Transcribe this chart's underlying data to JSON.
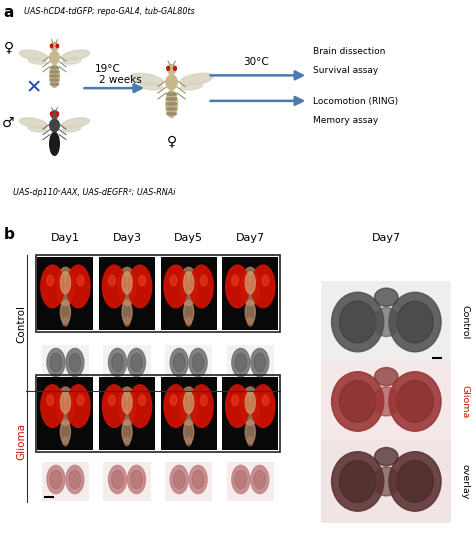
{
  "panel_a_label": "a",
  "panel_b_label": "b",
  "fly_label_top": "UAS-hCD4-tdGFP; repo-GAL4, tub-GAL80ts",
  "fly_label_bottom": "UAS-dp110ᶜAAX, UAS-dEGFR²; UAS-RNAi",
  "temp1_a": "19°C",
  "temp1_b": "2 weeks",
  "temp2": "30°C",
  "arrow_color": "#4a7ab0",
  "cross_color": "#2244bb",
  "female_symbol": "♀",
  "male_symbol": "♂",
  "female_result": "♀",
  "assay_lines": [
    "Brain dissection",
    "Survival assay",
    "Locomotion (RING)",
    "Memory assay"
  ],
  "day_labels": [
    "Day1",
    "Day3",
    "Day5",
    "Day7"
  ],
  "day7_label": "Day7",
  "control_label": "Control",
  "glioma_label": "Glioma",
  "overlay_label": "overlay",
  "bg_white": "#ffffff",
  "bg_light_red": "#f8ecec",
  "bg_light_gray": "#f0f0f0",
  "eye_red": "#dd1100",
  "fly_face_tan": "#c8a880",
  "fly_body_dark": "#222222",
  "fly_wing_color": "#e0dcc8",
  "brain_dark_gray": "#404040",
  "brain_dark_red": "#883030",
  "brain_overlay": "#5a2828",
  "brain_small_gray": "#909090",
  "brain_small_pink": "#c09090"
}
